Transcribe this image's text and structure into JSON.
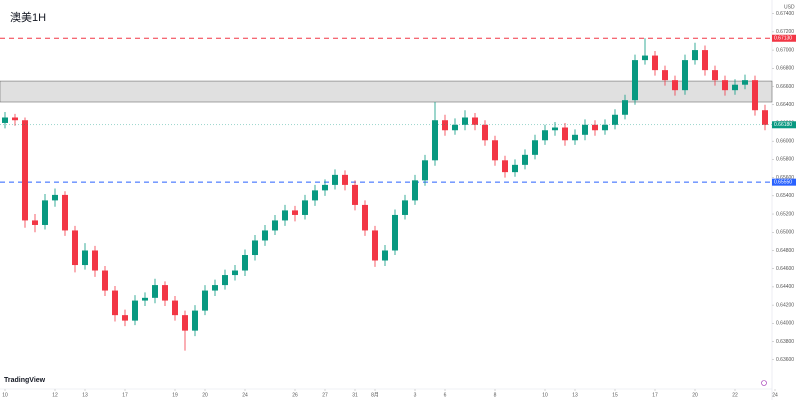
{
  "chart_data": {
    "type": "candlestick",
    "title": "澳美1H",
    "currency": "USD",
    "logo": "TradingView",
    "up_color": "#089981",
    "down_color": "#f23645",
    "ylim": [
      0.6329,
      0.6755
    ],
    "yticks": [
      {
        "value": 0.674,
        "label": "0.67400"
      },
      {
        "value": 0.672,
        "label": "0.67200"
      },
      {
        "value": 0.67,
        "label": "0.67000"
      },
      {
        "value": 0.668,
        "label": "0.66800"
      },
      {
        "value": 0.666,
        "label": "0.66600"
      },
      {
        "value": 0.664,
        "label": "0.66400"
      },
      {
        "value": 0.662,
        "label": "0.66200"
      },
      {
        "value": 0.66,
        "label": "0.66000"
      },
      {
        "value": 0.658,
        "label": "0.65800"
      },
      {
        "value": 0.656,
        "label": "0.65600"
      },
      {
        "value": 0.654,
        "label": "0.65400"
      },
      {
        "value": 0.652,
        "label": "0.65200"
      },
      {
        "value": 0.65,
        "label": "0.65000"
      },
      {
        "value": 0.648,
        "label": "0.64800"
      },
      {
        "value": 0.646,
        "label": "0.64600"
      },
      {
        "value": 0.644,
        "label": "0.64400"
      },
      {
        "value": 0.642,
        "label": "0.64200"
      },
      {
        "value": 0.64,
        "label": "0.64000"
      },
      {
        "value": 0.638,
        "label": "0.63800"
      },
      {
        "value": 0.636,
        "label": "0.63600"
      }
    ],
    "xticks": [
      {
        "value": 0,
        "label": "10"
      },
      {
        "value": 5,
        "label": "12"
      },
      {
        "value": 8,
        "label": "13"
      },
      {
        "value": 12,
        "label": "17"
      },
      {
        "value": 17,
        "label": "19"
      },
      {
        "value": 20,
        "label": "20"
      },
      {
        "value": 24,
        "label": "24"
      },
      {
        "value": 29,
        "label": "26"
      },
      {
        "value": 32,
        "label": "27"
      },
      {
        "value": 35,
        "label": "31"
      },
      {
        "value": 37,
        "label": "8月"
      },
      {
        "value": 41,
        "label": "3"
      },
      {
        "value": 44,
        "label": "6"
      },
      {
        "value": 49,
        "label": "8"
      },
      {
        "value": 54,
        "label": "10"
      },
      {
        "value": 57,
        "label": "13"
      },
      {
        "value": 61,
        "label": "15"
      },
      {
        "value": 65,
        "label": "17"
      },
      {
        "value": 69,
        "label": "20"
      },
      {
        "value": 73,
        "label": "22"
      },
      {
        "value": 77,
        "label": "24"
      }
    ],
    "price_lines": [
      {
        "value": 0.6713,
        "label": "0.67130",
        "color": "#f23645"
      },
      {
        "value": 0.6555,
        "label": "0.65550",
        "color": "#2962ff"
      }
    ],
    "zone": {
      "low": 0.6643,
      "high": 0.6666,
      "color": "#e0e0e0"
    },
    "last_price": {
      "value": 0.6618,
      "label": "0.66180",
      "color": "#089981"
    },
    "ohlc": [
      [
        0.662,
        0.6632,
        0.6614,
        0.6626
      ],
      [
        0.6626,
        0.663,
        0.6617,
        0.6623
      ],
      [
        0.6623,
        0.6626,
        0.6505,
        0.6513
      ],
      [
        0.6513,
        0.652,
        0.65,
        0.6508
      ],
      [
        0.6508,
        0.6542,
        0.6503,
        0.6535
      ],
      [
        0.6535,
        0.6548,
        0.6528,
        0.6541
      ],
      [
        0.6541,
        0.6545,
        0.6496,
        0.6502
      ],
      [
        0.6502,
        0.6507,
        0.6456,
        0.6464
      ],
      [
        0.6464,
        0.6488,
        0.6459,
        0.648
      ],
      [
        0.648,
        0.6485,
        0.6451,
        0.6458
      ],
      [
        0.6458,
        0.6463,
        0.643,
        0.6436
      ],
      [
        0.6436,
        0.6441,
        0.6402,
        0.6409
      ],
      [
        0.6409,
        0.6415,
        0.6397,
        0.6403
      ],
      [
        0.6403,
        0.6431,
        0.6398,
        0.6425
      ],
      [
        0.6425,
        0.6434,
        0.6419,
        0.6428
      ],
      [
        0.6428,
        0.6449,
        0.6422,
        0.6442
      ],
      [
        0.6442,
        0.6446,
        0.6419,
        0.6425
      ],
      [
        0.6425,
        0.643,
        0.6403,
        0.6409
      ],
      [
        0.6409,
        0.6414,
        0.637,
        0.6392
      ],
      [
        0.6392,
        0.642,
        0.6386,
        0.6414
      ],
      [
        0.6414,
        0.6442,
        0.6409,
        0.6436
      ],
      [
        0.6436,
        0.6448,
        0.643,
        0.6442
      ],
      [
        0.6442,
        0.6459,
        0.6437,
        0.6453
      ],
      [
        0.6453,
        0.6464,
        0.6447,
        0.6458
      ],
      [
        0.6458,
        0.6481,
        0.6452,
        0.6475
      ],
      [
        0.6475,
        0.6497,
        0.6469,
        0.6491
      ],
      [
        0.6491,
        0.6508,
        0.6485,
        0.6502
      ],
      [
        0.6502,
        0.6519,
        0.6497,
        0.6513
      ],
      [
        0.6513,
        0.653,
        0.6507,
        0.6524
      ],
      [
        0.6524,
        0.6529,
        0.6512,
        0.6519
      ],
      [
        0.6519,
        0.6541,
        0.6514,
        0.6535
      ],
      [
        0.6535,
        0.6552,
        0.6529,
        0.6546
      ],
      [
        0.6546,
        0.6558,
        0.654,
        0.6552
      ],
      [
        0.6552,
        0.6569,
        0.6547,
        0.6563
      ],
      [
        0.6563,
        0.6568,
        0.6546,
        0.6552
      ],
      [
        0.6552,
        0.6557,
        0.6524,
        0.653
      ],
      [
        0.653,
        0.6535,
        0.6496,
        0.6502
      ],
      [
        0.6502,
        0.6507,
        0.6462,
        0.6469
      ],
      [
        0.6469,
        0.6486,
        0.6463,
        0.648
      ],
      [
        0.648,
        0.6525,
        0.6475,
        0.6519
      ],
      [
        0.6519,
        0.6541,
        0.6514,
        0.6535
      ],
      [
        0.6535,
        0.6563,
        0.653,
        0.6557
      ],
      [
        0.6557,
        0.6585,
        0.6551,
        0.6579
      ],
      [
        0.6579,
        0.6643,
        0.6573,
        0.6623
      ],
      [
        0.6623,
        0.6629,
        0.6606,
        0.6612
      ],
      [
        0.6612,
        0.6625,
        0.6607,
        0.6618
      ],
      [
        0.6618,
        0.6634,
        0.6612,
        0.6626
      ],
      [
        0.6626,
        0.6631,
        0.6612,
        0.6618
      ],
      [
        0.6618,
        0.6623,
        0.6595,
        0.6601
      ],
      [
        0.6601,
        0.6606,
        0.6573,
        0.6579
      ],
      [
        0.6579,
        0.6584,
        0.656,
        0.6566
      ],
      [
        0.6566,
        0.658,
        0.6561,
        0.6574
      ],
      [
        0.6574,
        0.6591,
        0.6569,
        0.6585
      ],
      [
        0.6585,
        0.6607,
        0.658,
        0.6601
      ],
      [
        0.6601,
        0.6618,
        0.6596,
        0.6612
      ],
      [
        0.6612,
        0.6621,
        0.6606,
        0.6615
      ],
      [
        0.6615,
        0.662,
        0.6595,
        0.6601
      ],
      [
        0.6601,
        0.6613,
        0.6596,
        0.6607
      ],
      [
        0.6607,
        0.6624,
        0.6601,
        0.6618
      ],
      [
        0.6618,
        0.6623,
        0.6606,
        0.6612
      ],
      [
        0.6612,
        0.6624,
        0.6607,
        0.6618
      ],
      [
        0.6618,
        0.6635,
        0.6613,
        0.6629
      ],
      [
        0.6629,
        0.6651,
        0.6624,
        0.6645
      ],
      [
        0.6645,
        0.6695,
        0.664,
        0.6689
      ],
      [
        0.6689,
        0.6713,
        0.6684,
        0.6694
      ],
      [
        0.6694,
        0.6699,
        0.6672,
        0.6678
      ],
      [
        0.6678,
        0.6683,
        0.6661,
        0.6667
      ],
      [
        0.6667,
        0.6672,
        0.665,
        0.6656
      ],
      [
        0.6656,
        0.6695,
        0.6651,
        0.6689
      ],
      [
        0.6689,
        0.6708,
        0.6684,
        0.67
      ],
      [
        0.67,
        0.6705,
        0.6672,
        0.6678
      ],
      [
        0.6678,
        0.6683,
        0.6661,
        0.6667
      ],
      [
        0.6667,
        0.6672,
        0.665,
        0.6656
      ],
      [
        0.6656,
        0.6668,
        0.6651,
        0.6662
      ],
      [
        0.6662,
        0.6673,
        0.6657,
        0.6667
      ],
      [
        0.6667,
        0.6672,
        0.6628,
        0.6634
      ],
      [
        0.6634,
        0.664,
        0.6612,
        0.6618
      ]
    ]
  }
}
